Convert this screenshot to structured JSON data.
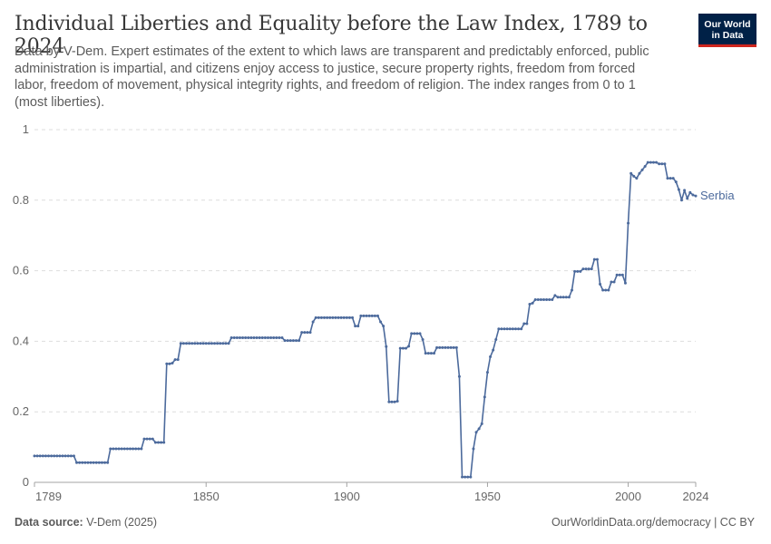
{
  "header": {
    "title": "Individual Liberties and Equality before the Law Index, 1789 to 2024",
    "subtitle": "Data by V-Dem. Expert estimates of the extent to which laws are transparent and predictably enforced, public administration is impartial, and citizens enjoy access to justice, secure property rights, freedom from forced labor, freedom of movement, physical integrity rights, and freedom of religion. The index ranges from 0 to 1 (most liberties).",
    "logo_line1": "Our World",
    "logo_line2": "in Data"
  },
  "footer": {
    "source_label": "Data source:",
    "source_value": "V-Dem (2025)",
    "link": "OurWorldinData.org/democracy",
    "license": "CC BY"
  },
  "colors": {
    "series": "#4c6a9c",
    "grid": "#dddddd",
    "text": "#5b5b5b",
    "logo_bg": "#002147",
    "logo_accent": "#ce261e"
  },
  "chart_data": {
    "type": "line",
    "title": "Individual Liberties and Equality before the Law Index, 1789 to 2024",
    "xlim": [
      1789,
      2024
    ],
    "ylim": [
      0,
      1
    ],
    "x_ticks": [
      "1789",
      "1850",
      "1900",
      "1950",
      "2000",
      "2024"
    ],
    "y_ticks": [
      "0",
      "0.2",
      "0.4",
      "0.6",
      "0.8",
      "1"
    ],
    "grid": true,
    "series": [
      {
        "name": "Serbia",
        "points": [
          [
            1789,
            0.075
          ],
          [
            1803,
            0.075
          ],
          [
            1804,
            0.056
          ],
          [
            1815,
            0.056
          ],
          [
            1816,
            0.095
          ],
          [
            1827,
            0.095
          ],
          [
            1828,
            0.123
          ],
          [
            1831,
            0.123
          ],
          [
            1832,
            0.113
          ],
          [
            1835,
            0.113
          ],
          [
            1836,
            0.336
          ],
          [
            1838,
            0.338
          ],
          [
            1839,
            0.348
          ],
          [
            1840,
            0.348
          ],
          [
            1841,
            0.394
          ],
          [
            1858,
            0.394
          ],
          [
            1859,
            0.41
          ],
          [
            1877,
            0.41
          ],
          [
            1878,
            0.402
          ],
          [
            1883,
            0.402
          ],
          [
            1884,
            0.425
          ],
          [
            1887,
            0.425
          ],
          [
            1888,
            0.455
          ],
          [
            1889,
            0.467
          ],
          [
            1902,
            0.467
          ],
          [
            1903,
            0.443
          ],
          [
            1904,
            0.443
          ],
          [
            1905,
            0.472
          ],
          [
            1911,
            0.472
          ],
          [
            1912,
            0.455
          ],
          [
            1913,
            0.443
          ],
          [
            1914,
            0.385
          ],
          [
            1915,
            0.228
          ],
          [
            1918,
            0.23
          ],
          [
            1919,
            0.38
          ],
          [
            1921,
            0.38
          ],
          [
            1922,
            0.386
          ],
          [
            1923,
            0.422
          ],
          [
            1926,
            0.422
          ],
          [
            1927,
            0.405
          ],
          [
            1928,
            0.366
          ],
          [
            1931,
            0.366
          ],
          [
            1932,
            0.382
          ],
          [
            1939,
            0.382
          ],
          [
            1940,
            0.3
          ],
          [
            1941,
            0.015
          ],
          [
            1944,
            0.015
          ],
          [
            1945,
            0.095
          ],
          [
            1946,
            0.142
          ],
          [
            1947,
            0.152
          ],
          [
            1948,
            0.166
          ],
          [
            1949,
            0.242
          ],
          [
            1950,
            0.312
          ],
          [
            1951,
            0.356
          ],
          [
            1952,
            0.375
          ],
          [
            1953,
            0.405
          ],
          [
            1954,
            0.435
          ],
          [
            1962,
            0.435
          ],
          [
            1963,
            0.45
          ],
          [
            1964,
            0.45
          ],
          [
            1965,
            0.505
          ],
          [
            1966,
            0.508
          ],
          [
            1967,
            0.518
          ],
          [
            1973,
            0.518
          ],
          [
            1974,
            0.53
          ],
          [
            1975,
            0.525
          ],
          [
            1979,
            0.525
          ],
          [
            1980,
            0.545
          ],
          [
            1981,
            0.598
          ],
          [
            1983,
            0.598
          ],
          [
            1984,
            0.605
          ],
          [
            1987,
            0.605
          ],
          [
            1988,
            0.632
          ],
          [
            1989,
            0.632
          ],
          [
            1990,
            0.562
          ],
          [
            1991,
            0.545
          ],
          [
            1993,
            0.545
          ],
          [
            1994,
            0.568
          ],
          [
            1995,
            0.568
          ],
          [
            1996,
            0.588
          ],
          [
            1998,
            0.588
          ],
          [
            1999,
            0.565
          ],
          [
            2000,
            0.735
          ],
          [
            2001,
            0.876
          ],
          [
            2002,
            0.868
          ],
          [
            2003,
            0.862
          ],
          [
            2004,
            0.876
          ],
          [
            2005,
            0.886
          ],
          [
            2006,
            0.896
          ],
          [
            2007,
            0.907
          ],
          [
            2010,
            0.907
          ],
          [
            2011,
            0.903
          ],
          [
            2013,
            0.903
          ],
          [
            2014,
            0.862
          ],
          [
            2016,
            0.862
          ],
          [
            2017,
            0.852
          ],
          [
            2018,
            0.83
          ],
          [
            2019,
            0.8
          ],
          [
            2020,
            0.828
          ],
          [
            2021,
            0.805
          ],
          [
            2022,
            0.822
          ],
          [
            2023,
            0.815
          ],
          [
            2024,
            0.812
          ]
        ]
      }
    ]
  }
}
